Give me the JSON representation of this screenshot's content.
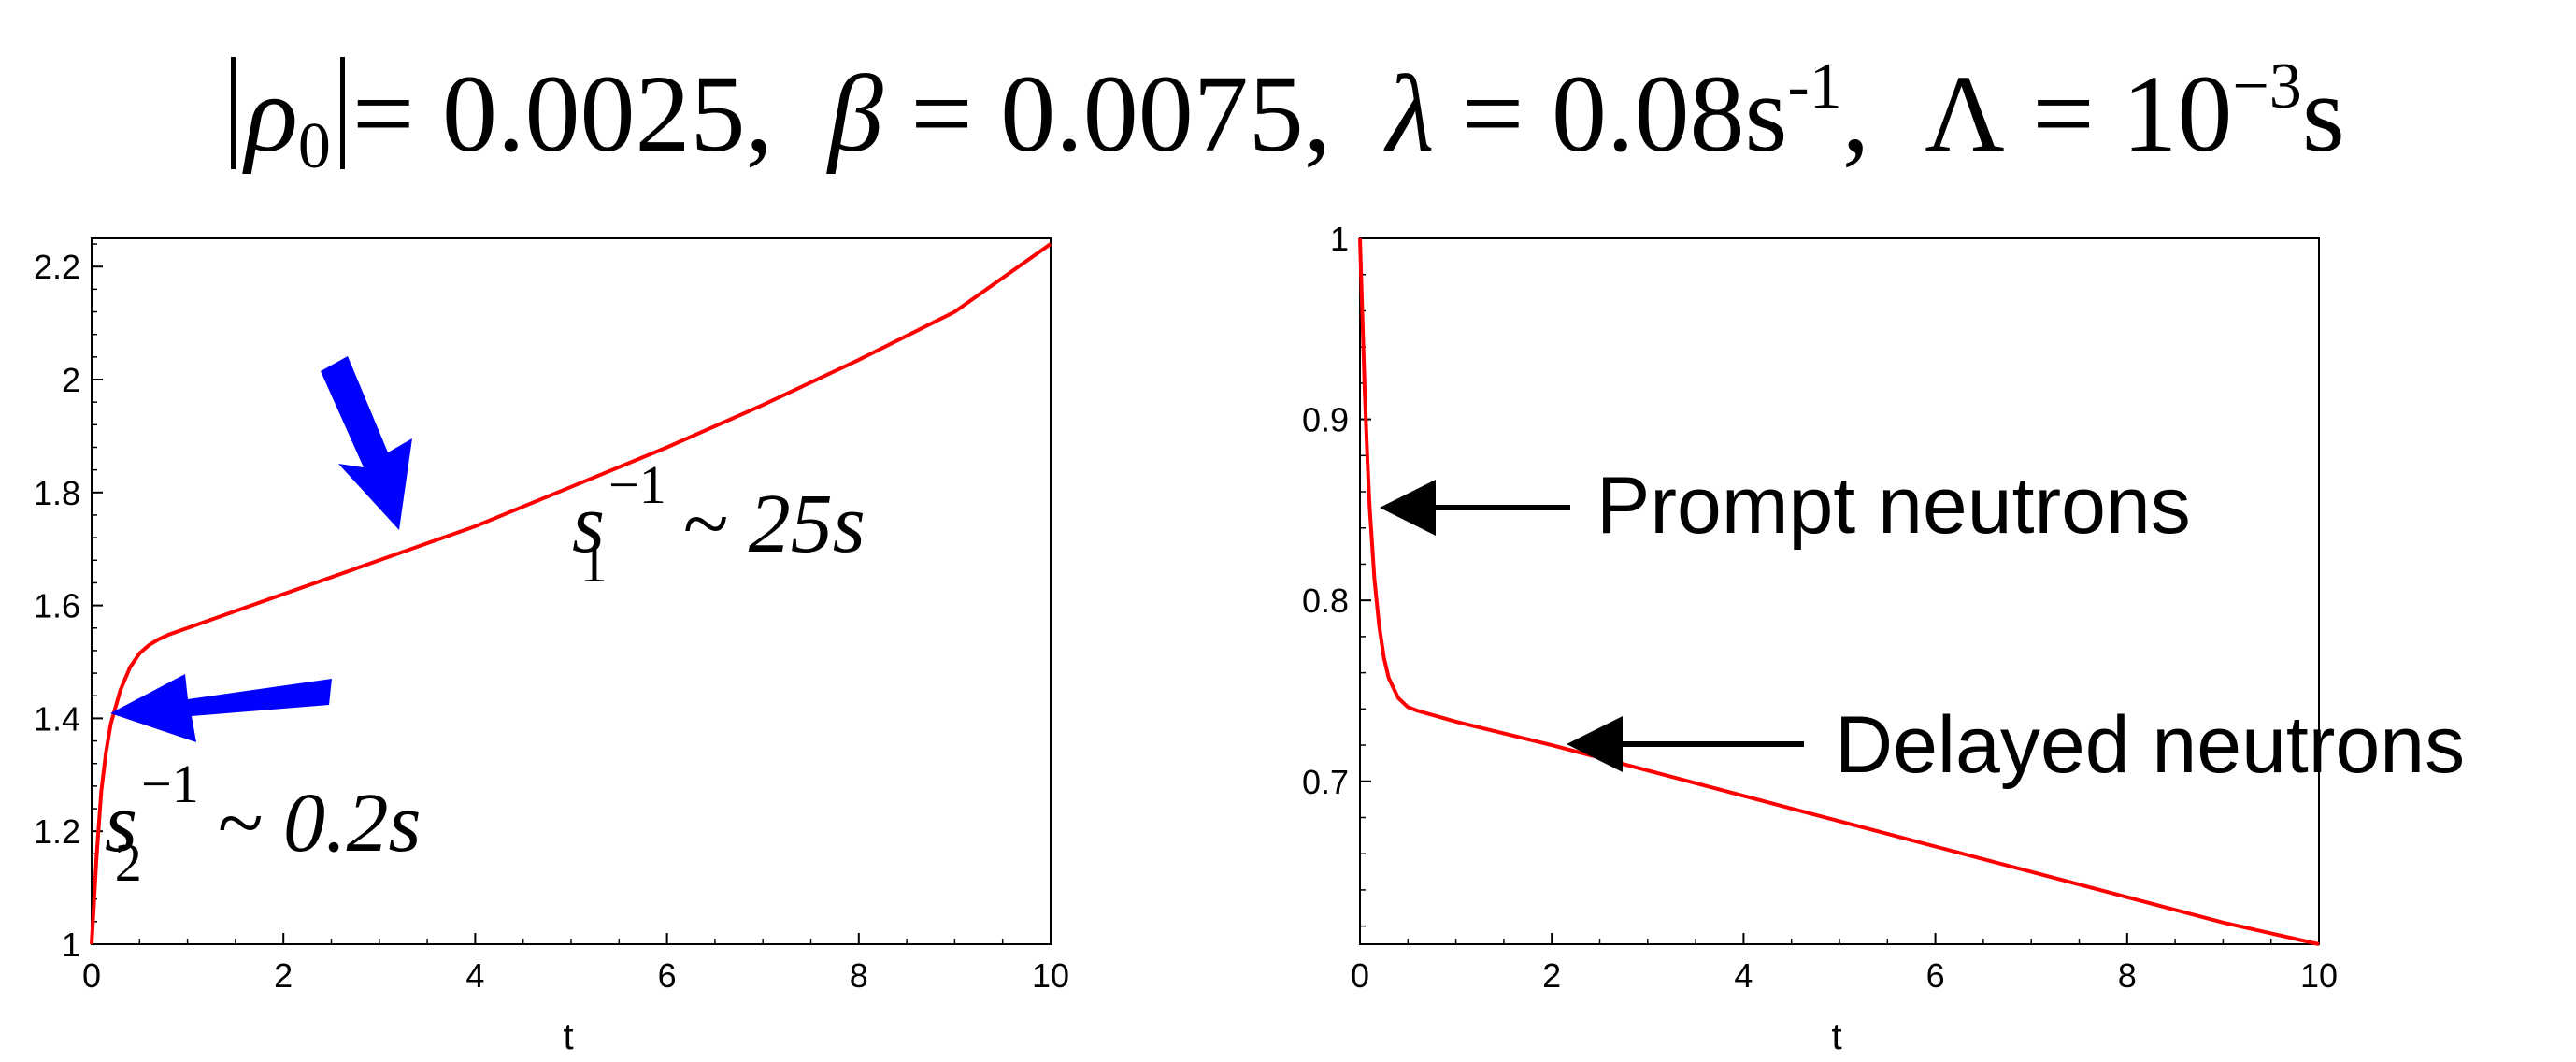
{
  "equation": {
    "rho_symbol": "ρ",
    "rho_subscript": "0",
    "rho_value": "= 0.0025,",
    "beta_symbol": "β",
    "beta_value": "= 0.0075,",
    "lambda_symbol": "λ",
    "lambda_value": "= 0.08s",
    "lambda_exponent": "-1",
    "lambda_sep": ",",
    "Lambda_symbol": "Λ",
    "Lambda_value": "= 10",
    "Lambda_exponent": "−3",
    "Lambda_unit": "s"
  },
  "annotations": {
    "s1": {
      "base": "s",
      "sub": "1",
      "sup": "−1",
      "rest": "~ 25s"
    },
    "s2": {
      "base": "s",
      "sub": "2",
      "sup": "−1",
      "rest": "~ 0.2s"
    },
    "prompt": "Prompt neutrons",
    "delayed": "Delayed neutrons"
  },
  "colors": {
    "curve": "#ff0000",
    "arrow_blue": "#0000ff",
    "arrow_black": "#000000",
    "axis": "#000000"
  },
  "chart_data": [
    {
      "type": "line",
      "title": "",
      "xlabel": "t",
      "ylabel": "",
      "xlim": [
        0,
        10
      ],
      "ylim": [
        1,
        2.25
      ],
      "xticks": [
        "0",
        "2",
        "4",
        "6",
        "8",
        "10"
      ],
      "yticks": [
        "1",
        "1.2",
        "1.4",
        "1.6",
        "1.8",
        "2",
        "2.2"
      ],
      "grid": false,
      "series": [
        {
          "x": [
            0,
            0.02,
            0.05,
            0.1,
            0.15,
            0.2,
            0.3,
            0.4,
            0.5,
            0.6,
            0.7,
            0.8,
            1.0,
            1.5,
            2.0,
            3.0,
            4.0,
            5.0,
            6.0,
            7.0,
            8.0,
            9.0,
            10.0
          ],
          "y": [
            1.0,
            1.06,
            1.15,
            1.27,
            1.34,
            1.39,
            1.45,
            1.49,
            1.515,
            1.53,
            1.54,
            1.548,
            1.56,
            1.59,
            1.62,
            1.68,
            1.74,
            1.81,
            1.88,
            1.955,
            2.035,
            2.12,
            2.24
          ]
        }
      ]
    },
    {
      "type": "line",
      "title": "",
      "xlabel": "t",
      "ylabel": "",
      "xlim": [
        0,
        10
      ],
      "ylim": [
        0.61,
        1.0
      ],
      "xticks": [
        "0",
        "2",
        "4",
        "6",
        "8",
        "10"
      ],
      "yticks": [
        "0.7",
        "0.8",
        "0.9",
        "1"
      ],
      "grid": false,
      "series": [
        {
          "x": [
            0,
            0.02,
            0.05,
            0.08,
            0.1,
            0.15,
            0.2,
            0.25,
            0.3,
            0.4,
            0.5,
            0.6,
            0.8,
            1.0,
            2.0,
            3.0,
            4.0,
            5.0,
            6.0,
            7.0,
            8.0,
            9.0,
            10.0
          ],
          "y": [
            1.0,
            0.965,
            0.915,
            0.875,
            0.852,
            0.812,
            0.786,
            0.768,
            0.757,
            0.746,
            0.741,
            0.739,
            0.736,
            0.733,
            0.72,
            0.706,
            0.692,
            0.678,
            0.664,
            0.65,
            0.636,
            0.622,
            0.61
          ]
        }
      ]
    }
  ]
}
